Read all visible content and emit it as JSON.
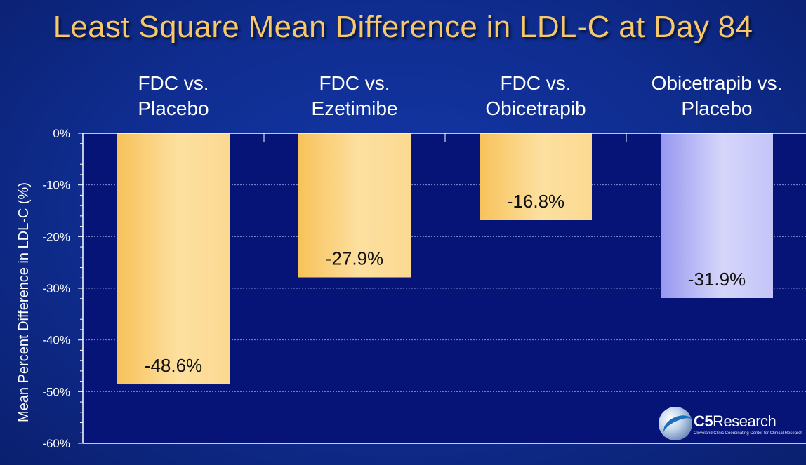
{
  "chart_data": {
    "type": "bar",
    "title": "Least Square Mean Difference in LDL-C at Day 84",
    "ylabel": "Mean Percent Difference in LDL-C (%)",
    "xlabel": "",
    "ylim": [
      -60,
      0
    ],
    "yticks": [
      0,
      -10,
      -20,
      -30,
      -40,
      -50,
      -60
    ],
    "ytick_labels": [
      "0%",
      "-10%",
      "-20%",
      "-30%",
      "-40%",
      "-50%",
      "-60%"
    ],
    "grid": true,
    "categories": [
      [
        "FDC vs.",
        "Placebo"
      ],
      [
        "FDC vs.",
        "Ezetimibe"
      ],
      [
        "FDC vs.",
        "Obicetrapib"
      ],
      [
        "Obicetrapib vs.",
        "Placebo"
      ]
    ],
    "values": [
      -48.6,
      -27.9,
      -16.8,
      -31.9
    ],
    "data_labels": [
      "-48.6%",
      "-27.9%",
      "-16.8%",
      "-31.9%"
    ],
    "bar_colors": [
      "#f7c461",
      "#f7c461",
      "#f7c461",
      "#9c9cf2"
    ]
  },
  "colors": {
    "background": "#0f2d8f",
    "title": "#f6c86a",
    "axis_text": "#ffffff"
  },
  "logo": {
    "text_bold": "C5",
    "text": "Research",
    "subtitle": "Cleveland Clinic Coordinating Center for Clinical Research",
    "icon": "globe-icon"
  }
}
